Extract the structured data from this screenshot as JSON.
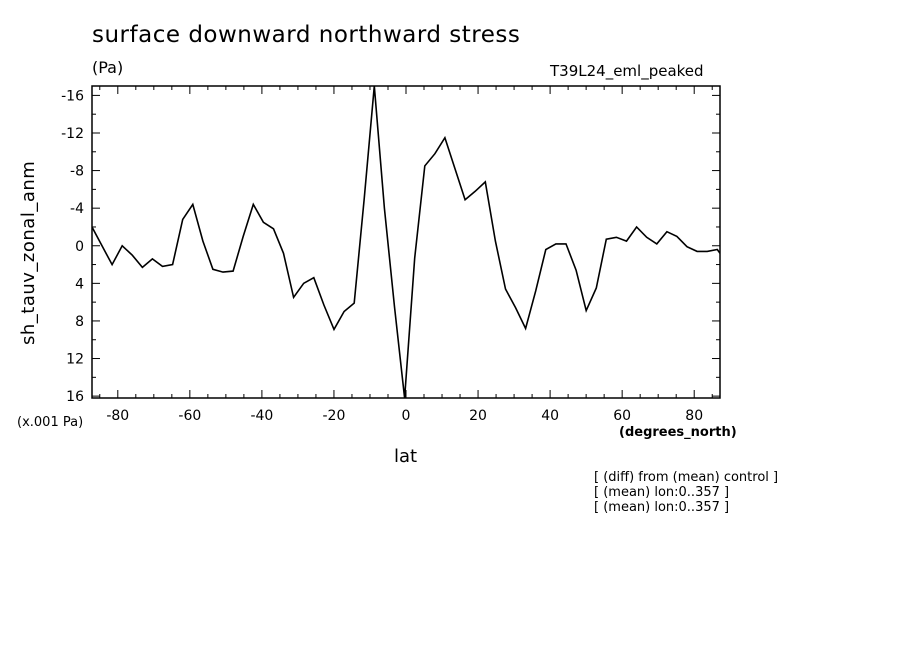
{
  "chart_data": {
    "type": "line",
    "title": "surface downward northward stress",
    "units": "(Pa)",
    "experiment": "T39L24_eml_peaked",
    "ylabel": "sh_tauv_zonal_anm",
    "xlabel": "lat",
    "x_units": "(degrees_north)",
    "y_scale_note": "(x.001 Pa)",
    "xlim": [
      -87.16,
      87.16
    ],
    "ylim": [
      16.2,
      -17
    ],
    "y_inverted": true,
    "x_ticks": [
      -80,
      -60,
      -40,
      -20,
      0,
      20,
      40,
      60,
      80
    ],
    "x_tick_labels": [
      "-80",
      "-60",
      "-40",
      "-20",
      "0",
      "20",
      "40",
      "60",
      "80"
    ],
    "y_ticks": [
      -16,
      -12,
      -8,
      -4,
      0,
      4,
      8,
      12,
      16
    ],
    "y_tick_labels": [
      "-16",
      "-12",
      "-8",
      "-4",
      "0",
      "4",
      "8",
      "12",
      "16"
    ],
    "grid": false,
    "series": [
      {
        "x": [
          -87.16,
          -84.38,
          -81.58,
          -78.78,
          -75.98,
          -73.18,
          -70.39,
          -67.59,
          -64.79,
          -61.99,
          -59.19,
          -56.39,
          -53.59,
          -50.79,
          -47.99,
          -45.19,
          -42.39,
          -39.59,
          -36.79,
          -33.99,
          -31.19,
          -28.39,
          -25.59,
          -22.79,
          -19.99,
          -17.19,
          -14.39,
          -11.59,
          -8.79,
          -5.99,
          -3.19,
          -0.39,
          2.41,
          5.21,
          8.01,
          10.81,
          13.61,
          16.41,
          19.21,
          22.01,
          24.81,
          27.61,
          30.41,
          33.21,
          36.01,
          38.81,
          41.61,
          44.41,
          47.21,
          50.01,
          52.81,
          55.61,
          58.41,
          61.21,
          64.01,
          66.81,
          69.61,
          72.41,
          75.21,
          78.01,
          80.81,
          83.61,
          86.41,
          87.16
        ],
        "values": [
          -2.0,
          0.0,
          2.0,
          0.0,
          1.0,
          2.3,
          1.4,
          2.2,
          2.0,
          -2.8,
          -4.4,
          -0.5,
          2.5,
          2.8,
          2.7,
          -1.0,
          -4.4,
          -2.5,
          -1.8,
          0.8,
          5.5,
          4.0,
          3.4,
          6.3,
          8.9,
          7.0,
          6.1,
          -5.0,
          -17.0,
          -4.0,
          6.5,
          16.2,
          1.3,
          -8.5,
          -9.8,
          -11.5,
          -8.2,
          -4.9,
          -5.8,
          -6.8,
          -0.5,
          4.6,
          6.6,
          8.8,
          4.8,
          0.4,
          -0.2,
          -0.2,
          2.6,
          6.9,
          4.5,
          -0.7,
          -0.9,
          -0.5,
          -2.0,
          -0.9,
          -0.2,
          -1.5,
          -1.0,
          0.1,
          0.6,
          0.6,
          0.4,
          0.8
        ]
      }
    ]
  },
  "notes": [
    "[ (diff) from (mean) control ]",
    "[ (mean) lon:0..357 ]",
    "[ (mean) lon:0..357 ]"
  ]
}
